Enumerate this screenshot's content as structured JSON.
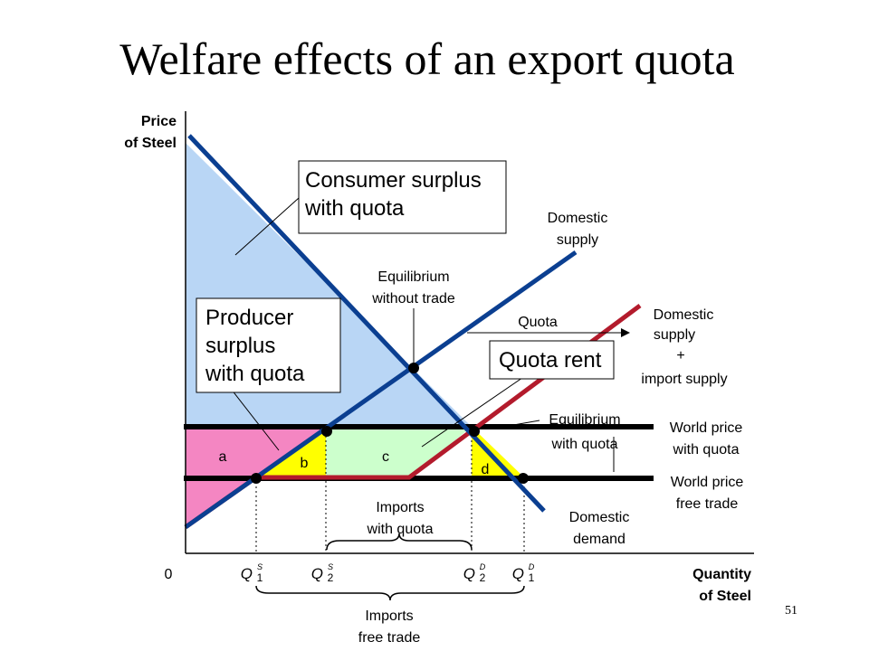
{
  "title": "Welfare effects of an export quota",
  "page_number": "51",
  "colors": {
    "demand": "#0b3f91",
    "supply": "#0b3f91",
    "quota_supply": "#b31b2c",
    "consumer_surplus": "#b9d6f5",
    "producer_surplus": "#f486c2",
    "yellow": "#ffff00",
    "quota_rent": "#ccffcc",
    "price_line": "#000000"
  },
  "axes": {
    "y_label_line1": "Price",
    "y_label_line2": "of Steel",
    "x_label_line1": "Quantity",
    "x_label_line2": "of Steel",
    "origin": "0"
  },
  "callouts": {
    "consumer_line1": "Consumer surplus",
    "consumer_line2": "with quota",
    "producer_line1": "Producer",
    "producer_line2": "surplus",
    "producer_line3": "with quota",
    "quota_rent": "Quota rent"
  },
  "labels": {
    "domestic_supply_line1": "Domestic",
    "domestic_supply_line2": "supply",
    "eq_without_line1": "Equilibrium",
    "eq_without_line2": "without trade",
    "quota": "Quota",
    "ds_import_line1": "Domestic",
    "ds_import_line2": "supply",
    "ds_import_plus": "+",
    "ds_import_line4": "import supply",
    "eq_with_line1": "Equilibrium",
    "eq_with_line2": "with quota",
    "wp_quota_line1": "World price",
    "wp_quota_line2": "with quota",
    "wp_free_line1": "World price",
    "wp_free_line2": "free trade",
    "demand_line1": "Domestic",
    "demand_line2": "demand",
    "imports_quota_line1": "Imports",
    "imports_quota_line2": "with quota",
    "imports_free_line1": "Imports",
    "imports_free_line2": "free trade"
  },
  "areas": {
    "a": "a",
    "b": "b",
    "c": "c",
    "d": "d"
  },
  "ticks": [
    {
      "letter": "Q",
      "sup": "S",
      "sub": "1"
    },
    {
      "letter": "Q",
      "sup": "S",
      "sub": "2"
    },
    {
      "letter": "Q",
      "sup": "D",
      "sub": "2"
    },
    {
      "letter": "Q",
      "sup": "D",
      "sub": "1"
    }
  ]
}
